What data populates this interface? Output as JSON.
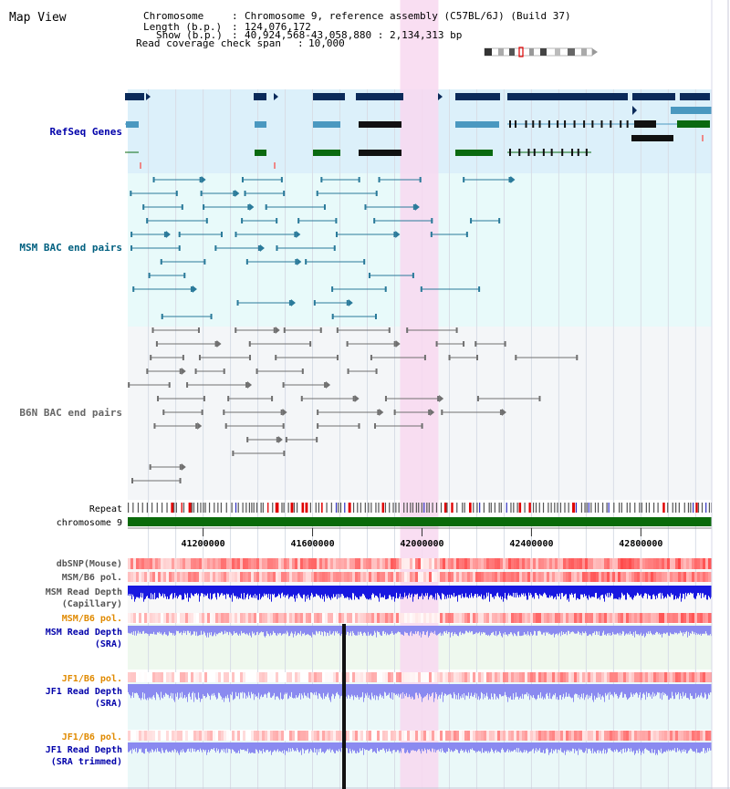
{
  "view_title": "Map View",
  "header": {
    "chromosome_label": "Chromosome",
    "chromosome_value": "Chromosome 9, reference assembly (C57BL/6J) (Build 37)",
    "length_label": "Length (b.p.)",
    "length_value": "124,076,172",
    "show_label": "Show (b.p.)",
    "show_value": "40,924,568-43,058,880 : 2,134,313 bp",
    "coverage_label": "Read coverage check span",
    "coverage_value": "10,000"
  },
  "range": {
    "start": 40924568,
    "end": 43058880
  },
  "highlight": {
    "start": 41920000,
    "end": 42060000
  },
  "tracks": {
    "refseq": "RefSeq Genes",
    "msm_bac": "MSM BAC end pairs",
    "b6n_bac": "B6N BAC end pairs",
    "repeat": "Repeat",
    "chromosome": "chromosome 9",
    "dbsnp": "dbSNP(Mouse)",
    "msm_b6_pol_1": "MSM/B6 pol.",
    "msm_depth_cap_1": "MSM Read Depth",
    "msm_depth_cap_2": "(Capillary)",
    "msm_b6_pol_2": "MSM/B6 pol.",
    "msm_depth_sra_1": "MSM Read Depth",
    "msm_depth_sra_2": "(SRA)",
    "jf1_b6_pol_1": "JF1/B6 pol.",
    "jf1_depth_sra_1": "JF1 Read Depth",
    "jf1_depth_sra_2": "(SRA)",
    "jf1_b6_pol_2": "JF1/B6 pol.",
    "jf1_depth_trim_1": "JF1 Read Depth",
    "jf1_depth_trim_2": "(SRA trimmed)"
  },
  "axis_ticks": [
    {
      "value": 41200000,
      "label": "41200000"
    },
    {
      "value": 41600000,
      "label": "41600000"
    },
    {
      "value": 42000000,
      "label": "42000000"
    },
    {
      "value": 42400000,
      "label": "42400000"
    },
    {
      "value": 42800000,
      "label": "42800000"
    }
  ],
  "colors": {
    "refseq_bg": "#dcf0fa",
    "bac_bg": "#e8fafa",
    "highlight": "#f8d8f0",
    "gene_dark": "#0a2a5a",
    "gene_mid": "#4a98c0",
    "gene_green": "#0a6a10",
    "msm_bac": "#2a7a9a",
    "b6n_bac": "#707070",
    "chromosome": "#0a6a0a",
    "depth_capillary": "#1818e0",
    "depth_sra": "#8a8af0",
    "title_blue": "#0000aa",
    "title_teal": "#006080",
    "title_orange": "#e08a00"
  },
  "icons": {
    "ideogram": "chromosome-ideogram-icon"
  }
}
